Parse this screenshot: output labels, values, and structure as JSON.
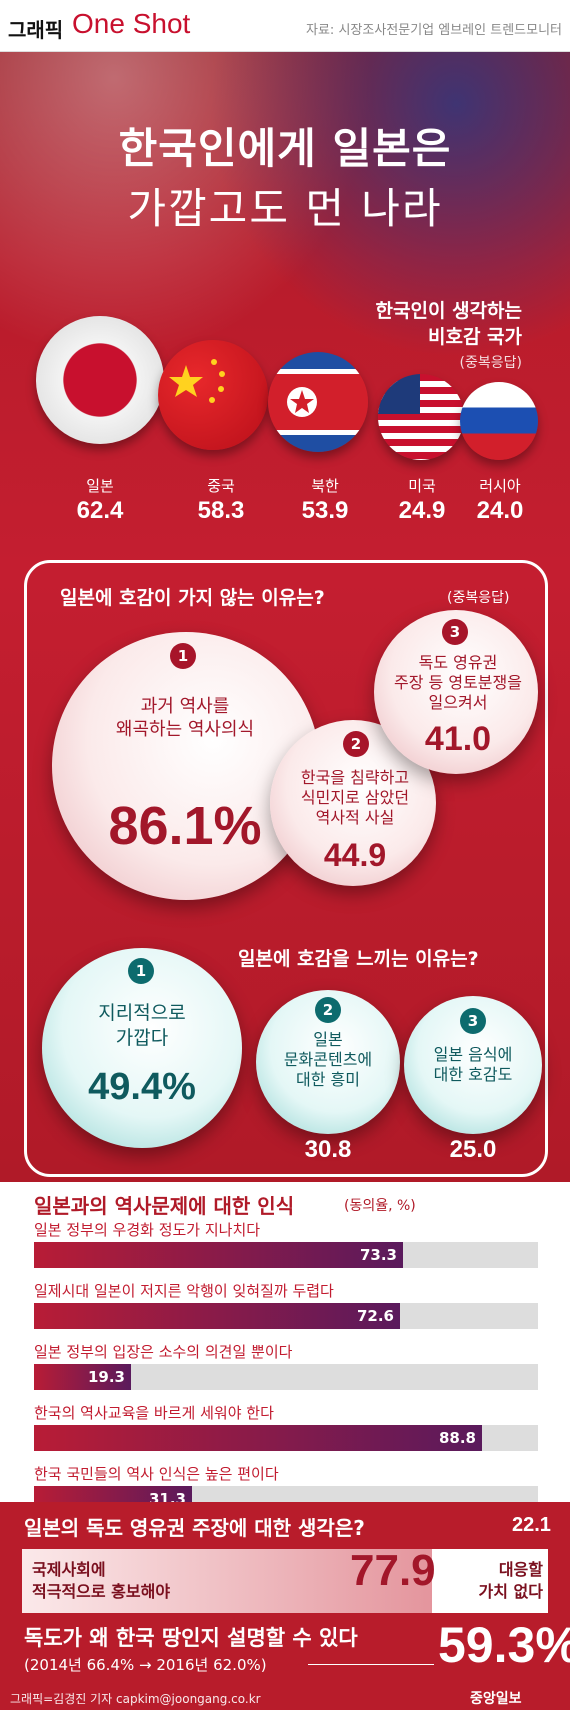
{
  "header": {
    "brand_small": "그래픽",
    "brand_large": "One Shot",
    "source": "자료: 시장조사전문기업 엠브레인 트렌드모니터"
  },
  "title": {
    "line1": "한국인에게 일본은",
    "line2": "가깝고도 먼 나라"
  },
  "section1": {
    "title_line1": "한국인이 생각하는",
    "title_line2": "비호감 국가",
    "note": "(중복응답)"
  },
  "section2": {
    "title": "일본에 호감이 가지 않는 이유는?",
    "note": "(중복응답)"
  },
  "section3": {
    "title": "일본에 호감을 느끼는 이유는?"
  },
  "section4": {
    "title": "일본과의 역사문제에 대한 인식",
    "note": "(동의율, %)"
  },
  "section5": {
    "title": "일본의 독도 영유권 주장에 대한 생각은?",
    "label_left_1": "국제사회에",
    "label_left_2": "적극적으로 홍보해야",
    "label_right_1": "대응할",
    "label_right_2": "가치 없다"
  },
  "section6": {
    "title": "독도가 왜 한국 땅인지 설명할 수 있다",
    "trend": "(2014년 66.4% → 2016년 62.0%)",
    "value_label": "59.3%"
  },
  "footer": {
    "credit": "그래픽=김경진 기자 capkim@joongang.co.kr",
    "logo": "중앙일보"
  },
  "colors": {
    "primary_red": "#c41e30",
    "dark_red": "#a2172a",
    "teal": "#0d6b6e",
    "bar_end": "#5a1a5c"
  },
  "chart_data": [
    {
      "type": "bar",
      "title": "한국인이 생각하는 비호감 국가",
      "categories": [
        "일본",
        "중국",
        "북한",
        "미국",
        "러시아"
      ],
      "values": [
        62.4,
        58.3,
        53.9,
        24.9,
        24.0
      ],
      "value_labels": [
        "62.4",
        "58.3",
        "53.9",
        "24.9",
        "24.0"
      ],
      "icons": [
        "japan-flag-icon",
        "china-flag-icon",
        "north-korea-flag-icon",
        "usa-flag-icon",
        "russia-flag-icon"
      ]
    },
    {
      "type": "bar",
      "title": "일본에 호감이 가지 않는 이유는?",
      "categories": [
        "과거 역사를 왜곡하는 역사의식",
        "한국을 침략하고 식민지로 삼았던 역사적 사실",
        "독도 영유권 주장 등 영토분쟁을 일으켜서"
      ],
      "values": [
        86.1,
        44.9,
        41.0
      ],
      "value_labels": [
        "86.1%",
        "44.9",
        "41.0"
      ],
      "label_lines": [
        [
          "과거 역사를",
          "왜곡하는 역사의식"
        ],
        [
          "한국을 침략하고",
          "식민지로 삼았던",
          "역사적 사실"
        ],
        [
          "독도 영유권",
          "주장 등 영토분쟁을",
          "일으켜서"
        ]
      ]
    },
    {
      "type": "bar",
      "title": "일본에 호감을 느끼는 이유는?",
      "categories": [
        "지리적으로 가깝다",
        "일본 문화콘텐츠에 대한 흥미",
        "일본 음식에 대한 호감도"
      ],
      "values": [
        49.4,
        30.8,
        25.0
      ],
      "value_labels": [
        "49.4%",
        "30.8",
        "25.0"
      ],
      "label_lines": [
        [
          "지리적으로",
          "가깝다"
        ],
        [
          "일본",
          "문화콘텐츠에",
          "대한 흥미"
        ],
        [
          "일본 음식에",
          "대한 호감도"
        ]
      ]
    },
    {
      "type": "bar",
      "title": "일본과의 역사문제에 대한 인식",
      "ylabel": "동의율, %",
      "xlim": [
        0,
        100
      ],
      "categories": [
        "일본 정부의 우경화 정도가 지나치다",
        "일제시대 일본이 저지른 악행이 잊혀질까 두렵다",
        "일본 정부의 입장은 소수의 의견일 뿐이다",
        "한국의 역사교육을 바르게 세워야 한다",
        "한국 국민들의 역사 인식은 높은 편이다"
      ],
      "values": [
        73.3,
        72.6,
        19.3,
        88.8,
        31.3
      ],
      "value_labels": [
        "73.3",
        "72.6",
        "19.3",
        "88.8",
        "31.3"
      ]
    },
    {
      "type": "bar",
      "title": "일본의 독도 영유권 주장에 대한 생각은?",
      "categories": [
        "국제사회에 적극적으로 홍보해야",
        "대응할 가치 없다"
      ],
      "values": [
        77.9,
        22.1
      ],
      "value_labels": [
        "77.9",
        "22.1"
      ]
    }
  ]
}
